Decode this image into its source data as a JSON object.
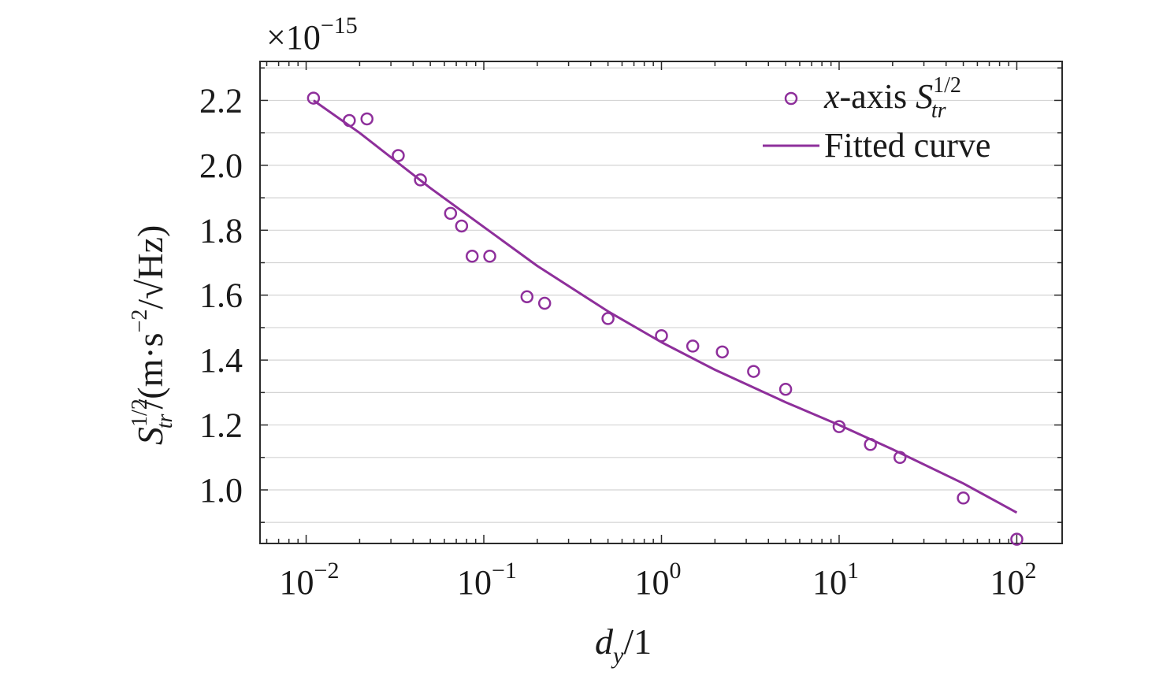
{
  "chart_data": {
    "type": "scatter",
    "multiplier": {
      "base": "×10",
      "exponent": "−15"
    },
    "x_scale": "log",
    "xlim": [
      0.0055,
      180
    ],
    "ylim": [
      0.835,
      2.32
    ],
    "x_ticks": [
      {
        "value": 0.01,
        "base": "10",
        "exp": "−2"
      },
      {
        "value": 0.1,
        "base": "10",
        "exp": "−1"
      },
      {
        "value": 1,
        "base": "10",
        "exp": "0"
      },
      {
        "value": 10,
        "base": "10",
        "exp": "1"
      },
      {
        "value": 100,
        "base": "10",
        "exp": "2"
      }
    ],
    "y_ticks": [
      {
        "value": 1.0,
        "label": "1.0"
      },
      {
        "value": 1.2,
        "label": "1.2"
      },
      {
        "value": 1.4,
        "label": "1.4"
      },
      {
        "value": 1.6,
        "label": "1.6"
      },
      {
        "value": 1.8,
        "label": "1.8"
      },
      {
        "value": 2.0,
        "label": "2.0"
      },
      {
        "value": 2.2,
        "label": "2.2"
      }
    ],
    "xlabel": {
      "main": "d",
      "sub": "y",
      "rest": "/1"
    },
    "ylabel": {
      "main": "S",
      "sup": "1/2",
      "sub": "tr",
      "rest": "/(m·s",
      "exp": "−2",
      "rest2": "/√Hz)"
    },
    "grid": "horizontal",
    "legend_position": "top-right",
    "series": [
      {
        "name": "x-axis S_tr^1/2",
        "legend": {
          "italic": "x",
          "text": "-axis ",
          "S": "S",
          "sup": "1/2",
          "sub": "tr"
        },
        "style": "open-circle",
        "color": "#8e2f9b",
        "points": [
          {
            "x": 0.011,
            "y": 2.207
          },
          {
            "x": 0.0175,
            "y": 2.138
          },
          {
            "x": 0.022,
            "y": 2.143
          },
          {
            "x": 0.033,
            "y": 2.03
          },
          {
            "x": 0.044,
            "y": 1.955
          },
          {
            "x": 0.065,
            "y": 1.852
          },
          {
            "x": 0.075,
            "y": 1.813
          },
          {
            "x": 0.086,
            "y": 1.72
          },
          {
            "x": 0.108,
            "y": 1.72
          },
          {
            "x": 0.175,
            "y": 1.595
          },
          {
            "x": 0.22,
            "y": 1.575
          },
          {
            "x": 0.5,
            "y": 1.528
          },
          {
            "x": 1.0,
            "y": 1.475
          },
          {
            "x": 1.5,
            "y": 1.443
          },
          {
            "x": 2.2,
            "y": 1.425
          },
          {
            "x": 3.3,
            "y": 1.365
          },
          {
            "x": 5.0,
            "y": 1.31
          },
          {
            "x": 10.0,
            "y": 1.195
          },
          {
            "x": 15.0,
            "y": 1.14
          },
          {
            "x": 22.0,
            "y": 1.1
          },
          {
            "x": 50.0,
            "y": 0.975
          },
          {
            "x": 100.0,
            "y": 0.848
          }
        ]
      },
      {
        "name": "Fitted curve",
        "style": "line",
        "color": "#8e2f9b",
        "points": [
          {
            "x": 0.011,
            "y": 2.2
          },
          {
            "x": 0.02,
            "y": 2.1
          },
          {
            "x": 0.05,
            "y": 1.93
          },
          {
            "x": 0.1,
            "y": 1.81
          },
          {
            "x": 0.2,
            "y": 1.69
          },
          {
            "x": 0.5,
            "y": 1.55
          },
          {
            "x": 1.0,
            "y": 1.455
          },
          {
            "x": 2.0,
            "y": 1.37
          },
          {
            "x": 5.0,
            "y": 1.27
          },
          {
            "x": 10.0,
            "y": 1.2
          },
          {
            "x": 20.0,
            "y": 1.125
          },
          {
            "x": 50.0,
            "y": 1.02
          },
          {
            "x": 100.0,
            "y": 0.93
          }
        ]
      }
    ]
  }
}
